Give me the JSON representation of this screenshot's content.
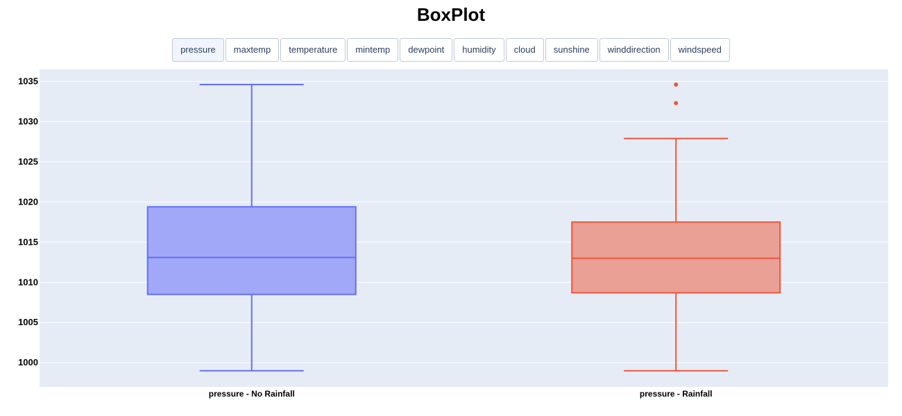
{
  "title": "BoxPlot",
  "tabs": [
    {
      "label": "pressure",
      "active": true
    },
    {
      "label": "maxtemp",
      "active": false
    },
    {
      "label": "temperature",
      "active": false
    },
    {
      "label": "mintemp",
      "active": false
    },
    {
      "label": "dewpoint",
      "active": false
    },
    {
      "label": "humidity",
      "active": false
    },
    {
      "label": "cloud",
      "active": false
    },
    {
      "label": "sunshine",
      "active": false
    },
    {
      "label": "winddirection",
      "active": false
    },
    {
      "label": "windspeed",
      "active": false
    }
  ],
  "chart_data": {
    "type": "box",
    "title": "BoxPlot",
    "xlabel": "",
    "ylabel": "",
    "categories": [
      "pressure - No Rainfall",
      "pressure - Rainfall"
    ],
    "ylim": [
      997,
      1036.5
    ],
    "yticks": [
      1000,
      1005,
      1010,
      1015,
      1020,
      1025,
      1030,
      1035
    ],
    "grid": true,
    "background": "#e5ecf6",
    "series": [
      {
        "category": "pressure - No Rainfall",
        "color": "#636efa",
        "fill": "#a1a8f7",
        "min": 999,
        "q1": 1008.5,
        "median": 1013.1,
        "q3": 1019.4,
        "max": 1034.6,
        "outliers": []
      },
      {
        "category": "pressure - Rainfall",
        "color": "#ef553b",
        "fill": "#eaa095",
        "min": 999,
        "q1": 1008.7,
        "median": 1013,
        "q3": 1017.5,
        "max": 1027.9,
        "outliers": [
          1034.6,
          1032.3
        ]
      }
    ]
  }
}
